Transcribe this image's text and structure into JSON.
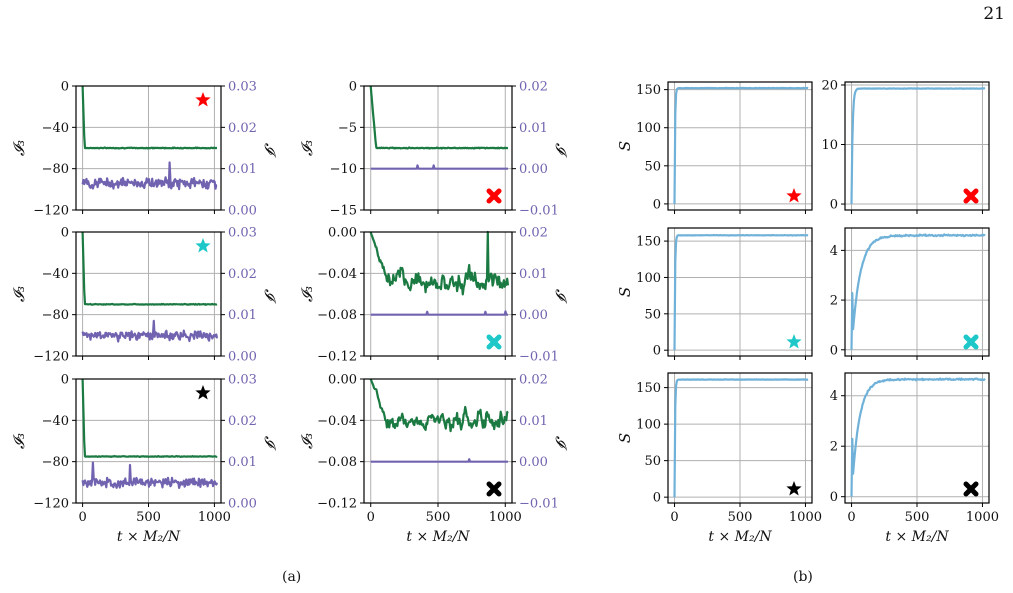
{
  "page_number": "21",
  "captions": {
    "a": "(a)",
    "b": "(b)"
  },
  "colors": {
    "green": "#1b7a42",
    "purple": "#7263b0",
    "blue": "#6fb1d8",
    "grid": "#b0b0b0"
  },
  "chart_data": [
    {
      "id": "a-r1-c1",
      "type": "line",
      "ylabel": "𝓘₃",
      "y2label": "𝓘",
      "ylim": [
        -120,
        0
      ],
      "yticks": [
        0,
        -40,
        -80,
        -120
      ],
      "y2lim": [
        0,
        0.03
      ],
      "y2ticks": [
        "0.00",
        "0.01",
        "0.02",
        "0.03"
      ],
      "xlim": [
        -50,
        1050
      ],
      "xticks": [
        0,
        500,
        1000
      ],
      "show_xticklabels": false,
      "xlabel": "",
      "marker": {
        "shape": "star",
        "color": "#ff0000",
        "pos": "top-right"
      },
      "series": [
        {
          "axis": "left",
          "color": "green",
          "kind": "plateau",
          "start": 0,
          "drop_to": -60,
          "drop_at": 15,
          "noise": 0.6
        },
        {
          "axis": "right",
          "color": "purple",
          "kind": "noisy",
          "mean": 0.0065,
          "amp": 0.0018,
          "spikes": [
            [
              660,
              0.0115
            ]
          ]
        }
      ]
    },
    {
      "id": "a-r1-c2",
      "type": "line",
      "ylabel": "𝓘₃",
      "y2label": "𝓘",
      "ylim": [
        -15,
        0
      ],
      "yticks": [
        0,
        -5,
        -10,
        -15
      ],
      "y2lim": [
        -0.01,
        0.02
      ],
      "y2ticks": [
        "−0.01",
        "0.00",
        "0.01",
        "0.02"
      ],
      "xlim": [
        -50,
        1050
      ],
      "xticks": [
        0,
        500,
        1000
      ],
      "show_xticklabels": false,
      "xlabel": "",
      "marker": {
        "shape": "x",
        "color": "#ff0000",
        "pos": "bottom-right"
      },
      "series": [
        {
          "axis": "left",
          "color": "green",
          "kind": "plateau",
          "start": 0,
          "drop_to": -7.5,
          "drop_at": 40,
          "noise": 0.08
        },
        {
          "axis": "right",
          "color": "purple",
          "kind": "flat",
          "mean": 0.0,
          "spikes": [
            [
              350,
              0.0008
            ],
            [
              470,
              0.0008
            ]
          ]
        }
      ]
    },
    {
      "id": "a-r2-c1",
      "type": "line",
      "ylabel": "𝓘₃",
      "y2label": "𝓘",
      "ylim": [
        -120,
        0
      ],
      "yticks": [
        0,
        -40,
        -80,
        -120
      ],
      "y2lim": [
        0,
        0.03
      ],
      "y2ticks": [
        "0.00",
        "0.01",
        "0.02",
        "0.03"
      ],
      "xlim": [
        -50,
        1050
      ],
      "xticks": [
        0,
        500,
        1000
      ],
      "show_xticklabels": false,
      "xlabel": "",
      "marker": {
        "shape": "star",
        "color": "#1ec8c8",
        "pos": "top-right"
      },
      "series": [
        {
          "axis": "left",
          "color": "green",
          "kind": "plateau",
          "start": 0,
          "drop_to": -70,
          "drop_at": 15,
          "noise": 0.5
        },
        {
          "axis": "right",
          "color": "purple",
          "kind": "noisy",
          "mean": 0.005,
          "amp": 0.0017,
          "spikes": [
            [
              540,
              0.0085
            ]
          ]
        }
      ]
    },
    {
      "id": "a-r2-c2",
      "type": "line",
      "ylabel": "𝓘₃",
      "y2label": "𝓘",
      "ylim": [
        -0.12,
        0
      ],
      "yticks": [
        "0.00",
        "−0.04",
        "−0.08",
        "−0.12"
      ],
      "y2lim": [
        -0.01,
        0.02
      ],
      "y2ticks": [
        "−0.01",
        "0.00",
        "0.01",
        "0.02"
      ],
      "xlim": [
        -50,
        1050
      ],
      "xticks": [
        0,
        500,
        1000
      ],
      "show_xticklabels": false,
      "xlabel": "",
      "marker": {
        "shape": "x",
        "color": "#1ec8c8",
        "pos": "bottom-right"
      },
      "series": [
        {
          "axis": "left",
          "color": "green",
          "kind": "wander",
          "start": 0,
          "level": -0.048,
          "noise": 0.012,
          "spikes": [
            [
              870,
              0.0
            ]
          ]
        },
        {
          "axis": "right",
          "color": "purple",
          "kind": "flat",
          "mean": 0.0,
          "spikes": [
            [
              420,
              0.0007
            ],
            [
              850,
              0.0007
            ],
            [
              1000,
              0.0008
            ]
          ]
        }
      ]
    },
    {
      "id": "a-r3-c1",
      "type": "line",
      "ylabel": "𝓘₃",
      "y2label": "𝓘",
      "ylim": [
        -120,
        0
      ],
      "yticks": [
        0,
        -40,
        -80,
        -120
      ],
      "y2lim": [
        0,
        0.03
      ],
      "y2ticks": [
        "0.00",
        "0.01",
        "0.02",
        "0.03"
      ],
      "xlim": [
        -50,
        1050
      ],
      "xticks": [
        0,
        500,
        1000
      ],
      "show_xticklabels": true,
      "xlabel": "t × M₂/N",
      "marker": {
        "shape": "star",
        "color": "#000000",
        "pos": "top-right"
      },
      "series": [
        {
          "axis": "left",
          "color": "green",
          "kind": "plateau",
          "start": 0,
          "drop_to": -75,
          "drop_at": 15,
          "noise": 0.5
        },
        {
          "axis": "right",
          "color": "purple",
          "kind": "noisy",
          "mean": 0.005,
          "amp": 0.0017,
          "spikes": [
            [
              80,
              0.0098
            ],
            [
              360,
              0.0092
            ]
          ]
        }
      ]
    },
    {
      "id": "a-r3-c2",
      "type": "line",
      "ylabel": "𝓘₃",
      "y2label": "𝓘",
      "ylim": [
        -0.12,
        0
      ],
      "yticks": [
        "0.00",
        "−0.04",
        "−0.08",
        "−0.12"
      ],
      "y2lim": [
        -0.01,
        0.02
      ],
      "y2ticks": [
        "−0.01",
        "0.00",
        "0.01",
        "0.02"
      ],
      "xlim": [
        -50,
        1050
      ],
      "xticks": [
        0,
        500,
        1000
      ],
      "show_xticklabels": true,
      "xlabel": "t × M₂/N",
      "marker": {
        "shape": "x",
        "color": "#000000",
        "pos": "bottom-right"
      },
      "series": [
        {
          "axis": "left",
          "color": "green",
          "kind": "wander",
          "start": 0,
          "level": -0.04,
          "noise": 0.011,
          "spikes": []
        },
        {
          "axis": "right",
          "color": "purple",
          "kind": "flat",
          "mean": 0.0,
          "spikes": [
            [
              730,
              0.0006
            ]
          ]
        }
      ]
    },
    {
      "id": "b-r1-c1",
      "type": "line",
      "ylabel": "S",
      "ylim": [
        -8,
        160
      ],
      "yticks": [
        0,
        50,
        100,
        150
      ],
      "xlim": [
        -50,
        1050
      ],
      "xticks": [
        0,
        500,
        1000
      ],
      "show_xticklabels": false,
      "xlabel": "",
      "marker": {
        "shape": "star",
        "color": "#ff0000",
        "pos": "bottom-right"
      },
      "series": [
        {
          "axis": "left",
          "color": "blue",
          "kind": "jump",
          "start": 0,
          "plateau": 152,
          "tau": 4,
          "noise": 0.4
        }
      ]
    },
    {
      "id": "b-r1-c2",
      "type": "line",
      "ylabel": "",
      "ylim": [
        -1,
        20.5
      ],
      "yticks": [
        0,
        10,
        20
      ],
      "xlim": [
        -50,
        1050
      ],
      "xticks": [
        0,
        500,
        1000
      ],
      "show_xticklabels": false,
      "xlabel": "",
      "marker": {
        "shape": "x",
        "color": "#ff0000",
        "pos": "bottom-right"
      },
      "series": [
        {
          "axis": "left",
          "color": "blue",
          "kind": "jump",
          "start": 0,
          "plateau": 19.4,
          "tau": 8,
          "noise": 0.06
        }
      ]
    },
    {
      "id": "b-r2-c1",
      "type": "line",
      "ylabel": "S",
      "ylim": [
        -8,
        168
      ],
      "yticks": [
        0,
        50,
        100,
        150
      ],
      "xlim": [
        -50,
        1050
      ],
      "xticks": [
        0,
        500,
        1000
      ],
      "show_xticklabels": false,
      "xlabel": "",
      "marker": {
        "shape": "star",
        "color": "#1ec8c8",
        "pos": "bottom-right"
      },
      "series": [
        {
          "axis": "left",
          "color": "blue",
          "kind": "jump",
          "start": 0,
          "plateau": 158,
          "tau": 4,
          "noise": 0.4
        }
      ]
    },
    {
      "id": "b-r2-c2",
      "type": "line",
      "ylabel": "",
      "ylim": [
        -0.25,
        4.9
      ],
      "yticks": [
        0,
        2,
        4
      ],
      "xlim": [
        -50,
        1050
      ],
      "xticks": [
        0,
        500,
        1000
      ],
      "show_xticklabels": false,
      "xlabel": "",
      "marker": {
        "shape": "x",
        "color": "#1ec8c8",
        "pos": "bottom-right"
      },
      "series": [
        {
          "axis": "left",
          "color": "blue",
          "kind": "saturate",
          "start": 0,
          "plateau": 4.6,
          "tau": 60,
          "noise": 0.05
        }
      ]
    },
    {
      "id": "b-r3-c1",
      "type": "line",
      "ylabel": "S",
      "ylim": [
        -8,
        170
      ],
      "yticks": [
        0,
        50,
        100,
        150
      ],
      "xlim": [
        -50,
        1050
      ],
      "xticks": [
        0,
        500,
        1000
      ],
      "show_xticklabels": true,
      "xlabel": "t × M₂/N",
      "marker": {
        "shape": "star",
        "color": "#000000",
        "pos": "bottom-right"
      },
      "series": [
        {
          "axis": "left",
          "color": "blue",
          "kind": "jump",
          "start": 0,
          "plateau": 161,
          "tau": 4,
          "noise": 0.4
        }
      ]
    },
    {
      "id": "b-r3-c2",
      "type": "line",
      "ylabel": "",
      "ylim": [
        -0.25,
        4.9
      ],
      "yticks": [
        0,
        2,
        4
      ],
      "xlim": [
        -50,
        1050
      ],
      "xticks": [
        0,
        500,
        1000
      ],
      "show_xticklabels": true,
      "xlabel": "t × M₂/N",
      "marker": {
        "shape": "x",
        "color": "#000000",
        "pos": "bottom-right"
      },
      "series": [
        {
          "axis": "left",
          "color": "blue",
          "kind": "saturate",
          "start": 0,
          "plateau": 4.65,
          "tau": 55,
          "noise": 0.05
        }
      ]
    }
  ]
}
